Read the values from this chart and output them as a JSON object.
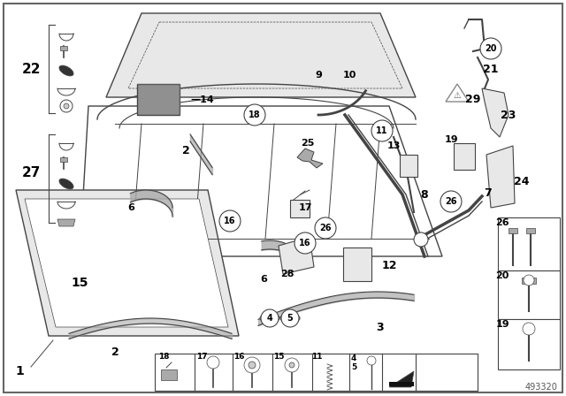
{
  "bg": "#ffffff",
  "lc": "#444444",
  "part_number": "493320",
  "gray_box": "#909090",
  "light_gray": "#cccccc",
  "mid_gray": "#aaaaaa",
  "panel_gray": "#e8e8e8",
  "box_fill": "#f2f2f2",
  "circle_fill": "#ffffff"
}
